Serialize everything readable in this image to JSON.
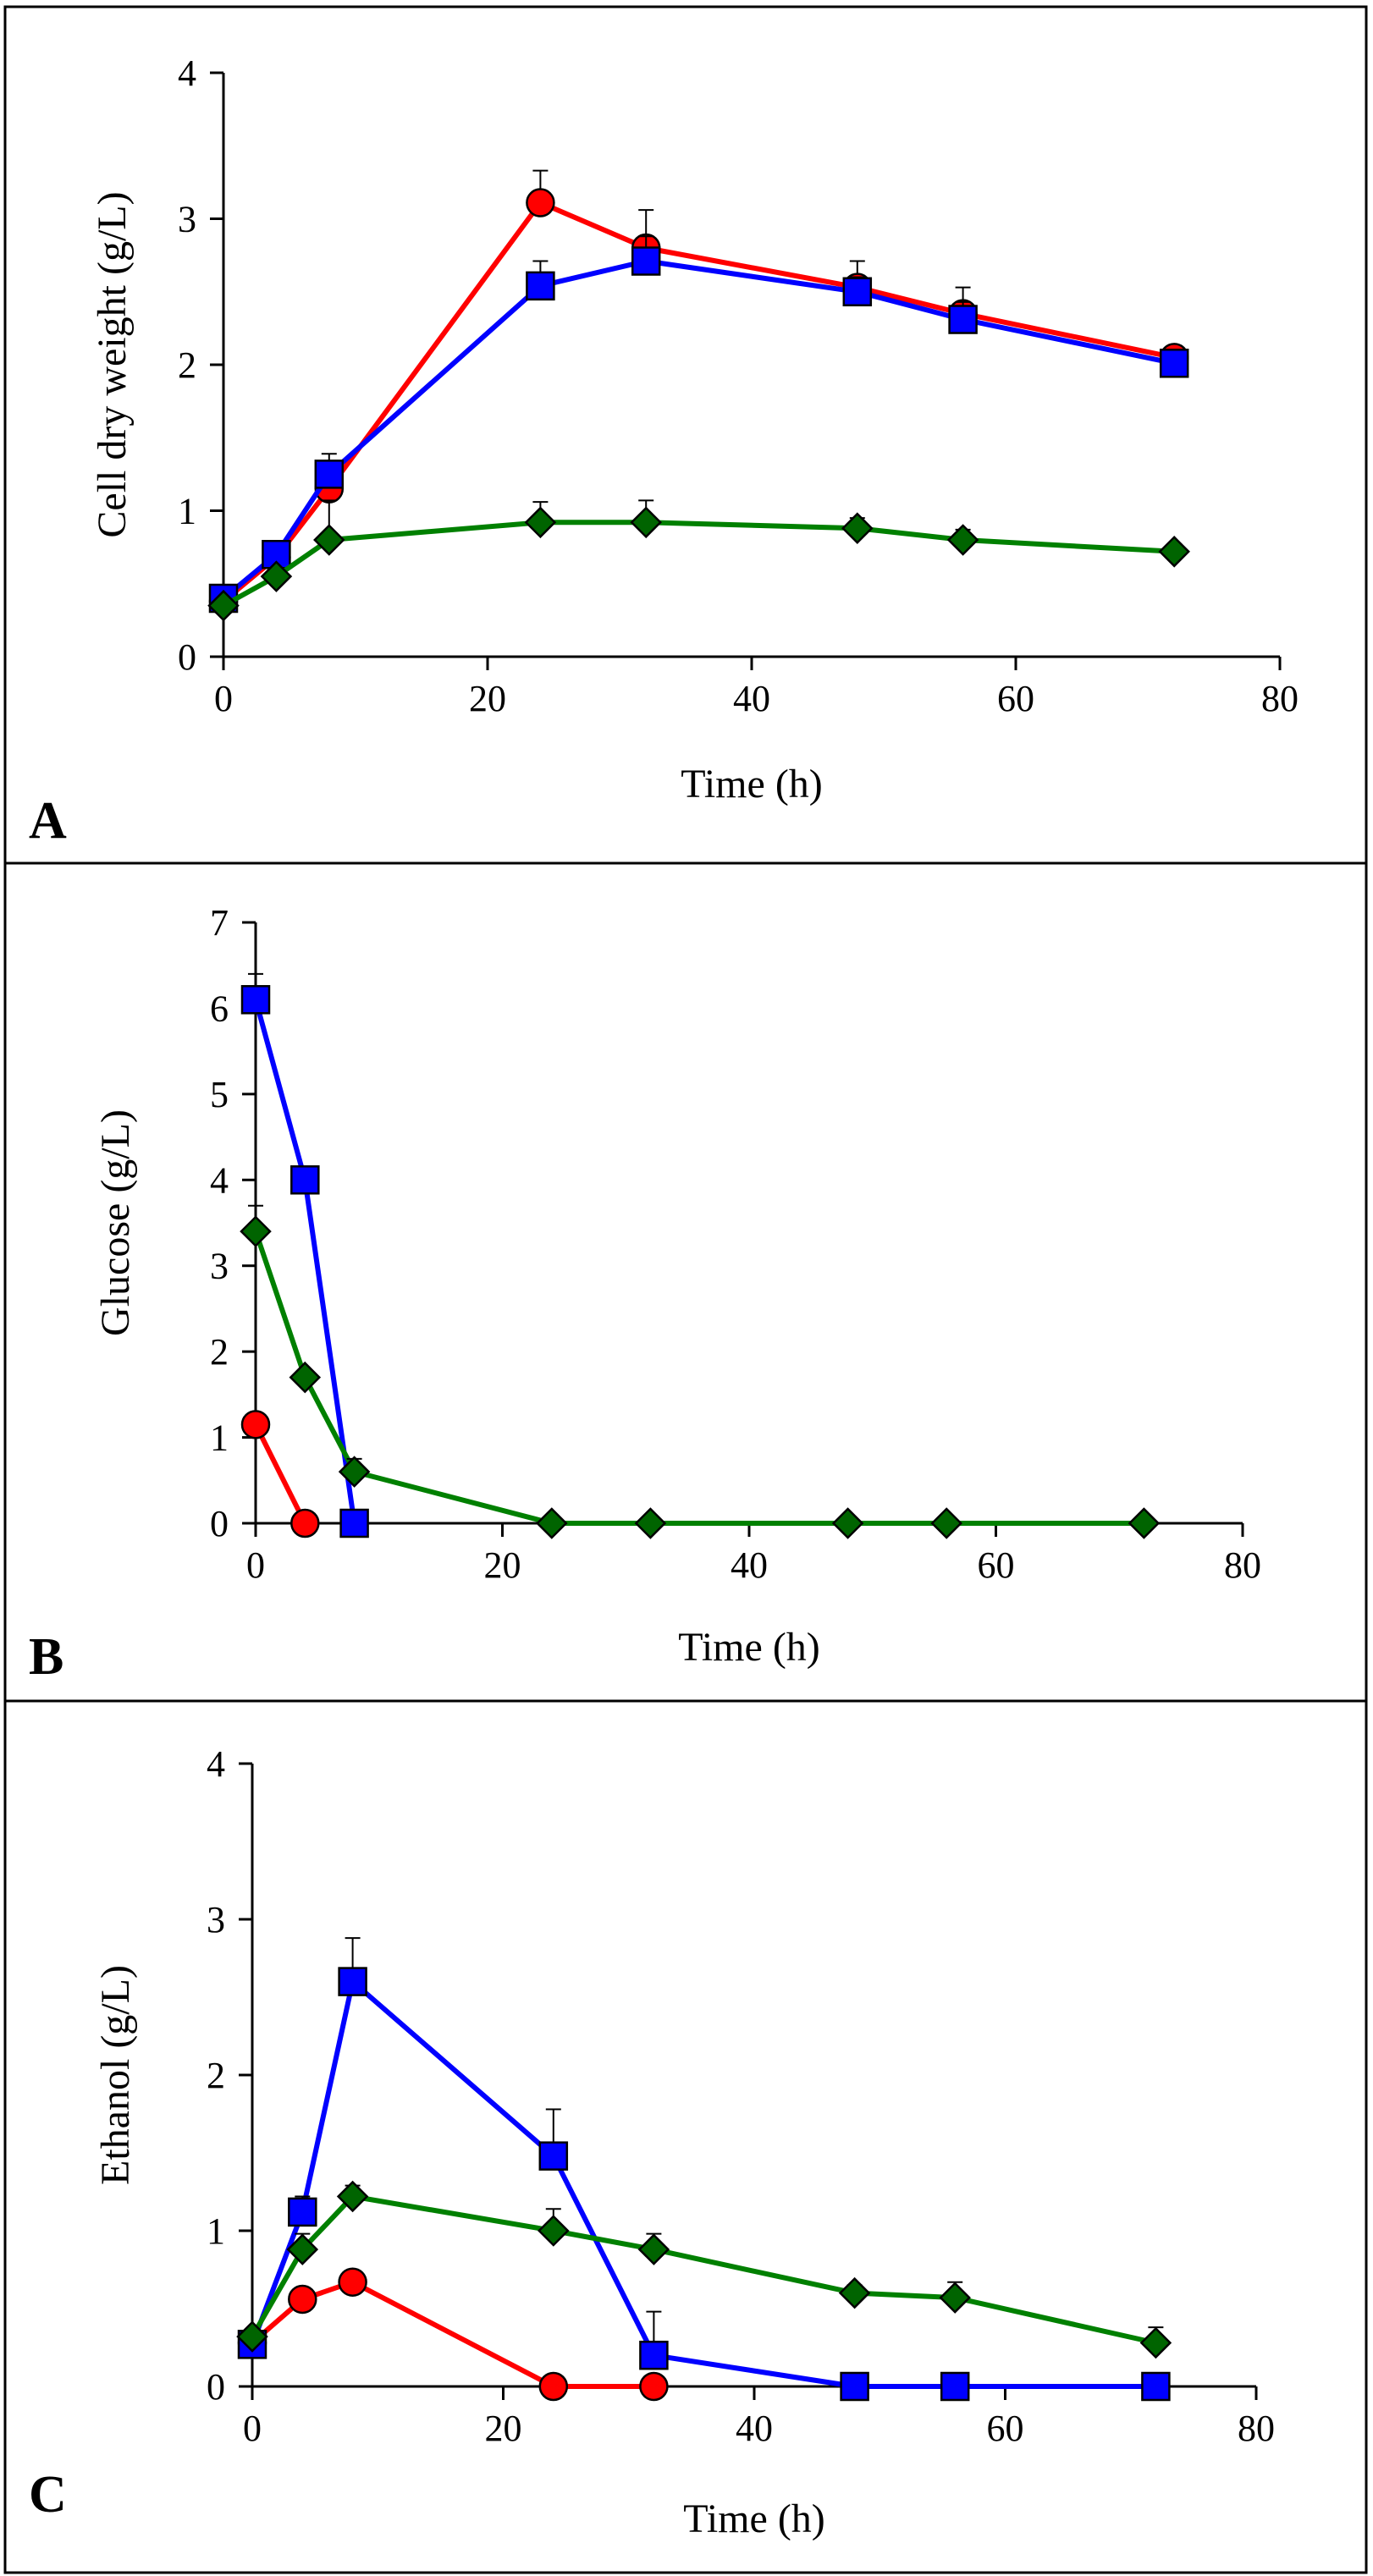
{
  "colors": {
    "red": "#ff0000",
    "blue": "#0000ff",
    "green": "#008000",
    "green_marker": "#006400"
  },
  "chart_data": [
    {
      "type": "line",
      "panel_label": "A",
      "xlabel": "Time (h)",
      "ylabel": "Cell dry weight (g/L)",
      "xlim": [
        0,
        80
      ],
      "ylim": [
        0,
        4
      ],
      "xticks": [
        0,
        20,
        40,
        60,
        80
      ],
      "yticks": [
        0,
        1,
        2,
        3,
        4
      ],
      "series": [
        {
          "name": "red-circle",
          "color": "#ff0000",
          "marker": "circle",
          "x": [
            0,
            4,
            8,
            24,
            32,
            48,
            56,
            72
          ],
          "y": [
            0.38,
            0.68,
            1.15,
            3.11,
            2.8,
            2.53,
            2.35,
            2.05
          ],
          "err": [
            0.04,
            0.05,
            0.1,
            0.22,
            0.26,
            0.18,
            0.18,
            0.05
          ]
        },
        {
          "name": "blue-square",
          "color": "#0000ff",
          "marker": "square",
          "x": [
            0,
            4,
            8,
            24,
            32,
            48,
            56,
            72
          ],
          "y": [
            0.4,
            0.7,
            1.25,
            2.54,
            2.71,
            2.5,
            2.31,
            2.01
          ],
          "err": [
            0.04,
            0.05,
            0.14,
            0.17,
            0.17,
            0.1,
            0.12,
            0.05
          ]
        },
        {
          "name": "green-diamond",
          "color": "#008000",
          "marker": "diamond",
          "x": [
            0,
            4,
            8,
            24,
            32,
            48,
            56,
            72
          ],
          "y": [
            0.35,
            0.55,
            0.8,
            0.92,
            0.92,
            0.88,
            0.8,
            0.72
          ],
          "err": [
            0.03,
            0.05,
            0.27,
            0.14,
            0.15,
            0.07,
            0.07,
            0.05
          ]
        }
      ]
    },
    {
      "type": "line",
      "panel_label": "B",
      "xlabel": "Time (h)",
      "ylabel": "Glucose (g/L)",
      "xlim": [
        0,
        80
      ],
      "ylim": [
        0,
        7
      ],
      "xticks": [
        0,
        20,
        40,
        60,
        80
      ],
      "yticks": [
        0,
        1,
        2,
        3,
        4,
        5,
        6,
        7
      ],
      "series": [
        {
          "name": "red-circle",
          "color": "#ff0000",
          "marker": "circle",
          "x": [
            0,
            4
          ],
          "y": [
            1.15,
            0.0
          ],
          "err": [
            0.05,
            0.0
          ]
        },
        {
          "name": "blue-square",
          "color": "#0000ff",
          "marker": "square",
          "x": [
            0,
            4,
            8
          ],
          "y": [
            6.1,
            4.0,
            0.0
          ],
          "err": [
            0.3,
            0.08,
            0.0
          ]
        },
        {
          "name": "green-diamond",
          "color": "#008000",
          "marker": "diamond",
          "x": [
            0,
            4,
            8,
            24,
            32,
            48,
            56,
            72
          ],
          "y": [
            3.4,
            1.7,
            0.6,
            0.0,
            0.0,
            0.0,
            0.0,
            0.0
          ],
          "err": [
            0.3,
            0.05,
            0.15,
            0.0,
            0.0,
            0.0,
            0.0,
            0.0
          ]
        }
      ]
    },
    {
      "type": "line",
      "panel_label": "C",
      "xlabel": "Time (h)",
      "ylabel": "Ethanol (g/L)",
      "xlim": [
        0,
        80
      ],
      "ylim": [
        0,
        4
      ],
      "xticks": [
        0,
        20,
        40,
        60,
        80
      ],
      "yticks": [
        0,
        1,
        2,
        3,
        4
      ],
      "series": [
        {
          "name": "red-circle",
          "color": "#ff0000",
          "marker": "circle",
          "x": [
            0,
            4,
            8,
            24,
            32
          ],
          "y": [
            0.28,
            0.56,
            0.67,
            0.0,
            0.0
          ],
          "err": [
            0.03,
            0.04,
            0.05,
            0.0,
            0.0
          ]
        },
        {
          "name": "blue-square",
          "color": "#0000ff",
          "marker": "square",
          "x": [
            0,
            4,
            8,
            24,
            32,
            48,
            56,
            72
          ],
          "y": [
            0.27,
            1.12,
            2.6,
            1.48,
            0.2,
            0.0,
            0.0,
            0.0
          ],
          "err": [
            0.04,
            0.1,
            0.28,
            0.3,
            0.28,
            0.0,
            0.0,
            0.0
          ]
        },
        {
          "name": "green-diamond",
          "color": "#008000",
          "marker": "diamond",
          "x": [
            0,
            4,
            8,
            24,
            32,
            48,
            56,
            72
          ],
          "y": [
            0.32,
            0.88,
            1.22,
            1.0,
            0.88,
            0.6,
            0.57,
            0.28
          ],
          "err": [
            0.04,
            0.1,
            0.07,
            0.14,
            0.1,
            0.05,
            0.1,
            0.1
          ]
        }
      ]
    }
  ]
}
